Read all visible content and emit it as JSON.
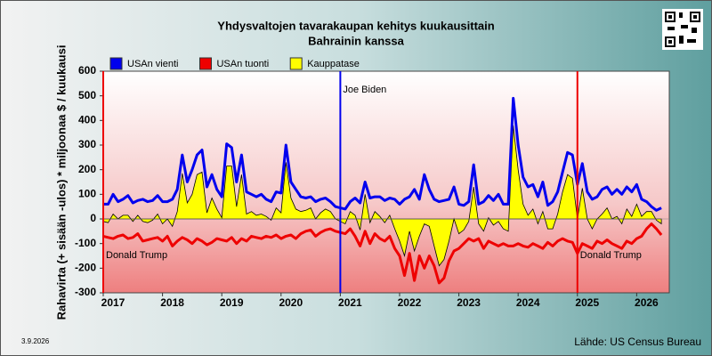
{
  "chart_data": {
    "type": "line",
    "title": "Yhdysvaltojen tavarakaupan kehitys kuukausittain",
    "subtitle": "Bahrainin kanssa",
    "y_label": "Rahavirta (+ sisään -ulos)  * miljoonaa $ / kuukausi",
    "date": "3.9.2026",
    "source": "Lähde: US Census Bureau",
    "x": [
      2017,
      2017.083,
      2017.167,
      2017.25,
      2017.333,
      2017.417,
      2017.5,
      2017.583,
      2017.667,
      2017.75,
      2017.833,
      2017.917,
      2018,
      2018.083,
      2018.167,
      2018.25,
      2018.333,
      2018.417,
      2018.5,
      2018.583,
      2018.667,
      2018.75,
      2018.833,
      2018.917,
      2019,
      2019.083,
      2019.167,
      2019.25,
      2019.333,
      2019.417,
      2019.5,
      2019.583,
      2019.667,
      2019.75,
      2019.833,
      2019.917,
      2020,
      2020.083,
      2020.167,
      2020.25,
      2020.333,
      2020.417,
      2020.5,
      2020.583,
      2020.667,
      2020.75,
      2020.833,
      2020.917,
      2021,
      2021.083,
      2021.167,
      2021.25,
      2021.333,
      2021.417,
      2021.5,
      2021.583,
      2021.667,
      2021.75,
      2021.833,
      2021.917,
      2022,
      2022.083,
      2022.167,
      2022.25,
      2022.333,
      2022.417,
      2022.5,
      2022.583,
      2022.667,
      2022.75,
      2022.833,
      2022.917,
      2023,
      2023.083,
      2023.167,
      2023.25,
      2023.333,
      2023.417,
      2023.5,
      2023.583,
      2023.667,
      2023.75,
      2023.833,
      2023.917,
      2024,
      2024.083,
      2024.167,
      2024.25,
      2024.333,
      2024.417,
      2024.5,
      2024.583,
      2024.667,
      2024.75,
      2024.833,
      2024.917,
      2025,
      2025.083,
      2025.167,
      2025.25,
      2025.333,
      2025.417,
      2025.5,
      2025.583,
      2025.667,
      2025.75,
      2025.833,
      2025.917,
      2026,
      2026.083,
      2026.167,
      2026.25,
      2026.333,
      2026.417
    ],
    "series": [
      {
        "name": "Kauppatase",
        "color": "#ffff00",
        "fill": "area",
        "values": [
          -10,
          -15,
          20,
          0,
          15,
          15,
          -10,
          15,
          -10,
          -15,
          -5,
          20,
          -20,
          0,
          -30,
          30,
          185,
          65,
          100,
          180,
          190,
          25,
          85,
          40,
          5,
          215,
          215,
          50,
          180,
          20,
          30,
          15,
          20,
          10,
          -5,
          45,
          25,
          230,
          85,
          40,
          30,
          35,
          45,
          0,
          25,
          40,
          30,
          0,
          -10,
          -20,
          30,
          15,
          -45,
          100,
          -15,
          30,
          10,
          -15,
          15,
          -40,
          -90,
          -150,
          -50,
          -130,
          -70,
          -20,
          -30,
          -110,
          -190,
          -165,
          -90,
          0,
          -60,
          -45,
          -10,
          130,
          -20,
          -50,
          5,
          -25,
          -10,
          -40,
          -50,
          380,
          200,
          60,
          15,
          40,
          -20,
          30,
          -40,
          -40,
          20,
          110,
          180,
          165,
          0,
          125,
          0,
          -40,
          0,
          20,
          45,
          0,
          10,
          -20,
          40,
          10,
          60,
          10,
          30,
          30,
          -5,
          -20
        ]
      },
      {
        "name": "USAn vienti",
        "color": "#0000ee",
        "values": [
          60,
          60,
          100,
          70,
          80,
          95,
          65,
          75,
          80,
          70,
          75,
          95,
          70,
          70,
          80,
          120,
          260,
          150,
          200,
          260,
          280,
          130,
          180,
          120,
          90,
          305,
          290,
          150,
          260,
          110,
          100,
          90,
          100,
          80,
          70,
          110,
          105,
          300,
          150,
          120,
          90,
          85,
          90,
          70,
          80,
          85,
          70,
          50,
          45,
          40,
          70,
          85,
          65,
          150,
          85,
          90,
          90,
          75,
          85,
          80,
          60,
          80,
          90,
          120,
          80,
          180,
          120,
          80,
          70,
          75,
          80,
          130,
          60,
          55,
          70,
          220,
          60,
          70,
          95,
          75,
          100,
          60,
          60,
          490,
          300,
          170,
          130,
          140,
          90,
          150,
          55,
          70,
          110,
          190,
          270,
          260,
          140,
          225,
          110,
          80,
          90,
          120,
          130,
          100,
          120,
          100,
          130,
          110,
          140,
          80,
          70,
          50,
          35,
          45
        ]
      },
      {
        "name": "USAn tuonti",
        "color": "#ee0000",
        "values": [
          -70,
          -75,
          -80,
          -70,
          -65,
          -80,
          -75,
          -60,
          -90,
          -85,
          -80,
          -75,
          -90,
          -70,
          -110,
          -90,
          -75,
          -85,
          -100,
          -80,
          -90,
          -105,
          -95,
          -80,
          -85,
          -90,
          -75,
          -100,
          -80,
          -90,
          -70,
          -75,
          -80,
          -70,
          -75,
          -65,
          -80,
          -70,
          -65,
          -80,
          -60,
          -50,
          -45,
          -70,
          -55,
          -45,
          -40,
          -50,
          -55,
          -60,
          -40,
          -70,
          -110,
          -50,
          -100,
          -60,
          -80,
          -90,
          -70,
          -120,
          -150,
          -230,
          -140,
          -250,
          -150,
          -200,
          -150,
          -190,
          -260,
          -240,
          -170,
          -130,
          -120,
          -100,
          -80,
          -90,
          -80,
          -120,
          -90,
          -100,
          -110,
          -100,
          -110,
          -110,
          -100,
          -110,
          -115,
          -100,
          -110,
          -120,
          -95,
          -110,
          -90,
          -80,
          -90,
          -95,
          -140,
          -100,
          -110,
          -120,
          -90,
          -100,
          -85,
          -100,
          -110,
          -120,
          -90,
          -100,
          -80,
          -70,
          -40,
          -20,
          -40,
          -65
        ]
      }
    ],
    "legend_order": [
      1,
      2,
      0
    ],
    "xlim": [
      2017,
      2026.55
    ],
    "xticks": [
      2017,
      2018,
      2019,
      2020,
      2021,
      2022,
      2023,
      2024,
      2025,
      2026
    ],
    "ylim": [
      -300,
      600
    ],
    "yticks": [
      -300,
      -200,
      -100,
      0,
      100,
      200,
      300,
      400,
      500,
      600
    ],
    "annotations": [
      {
        "x": 2017,
        "label": "Donald Trump",
        "color": "#ee0000"
      },
      {
        "x": 2021,
        "label": "Joe Biden",
        "color": "#0000ee"
      },
      {
        "x": 2025,
        "label": "Donald Trump",
        "color": "#ee0000"
      }
    ]
  }
}
